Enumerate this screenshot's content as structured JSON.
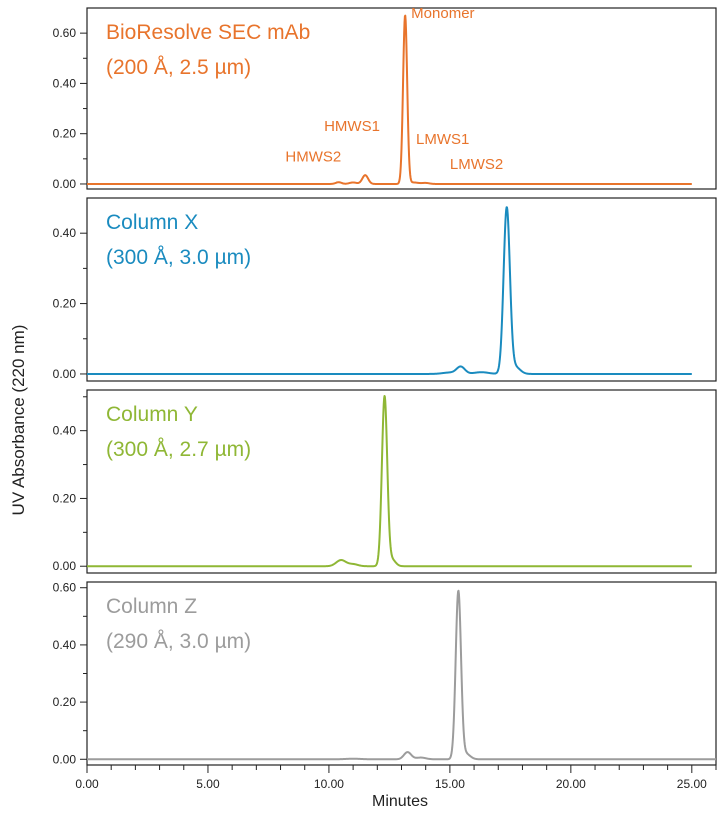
{
  "chart_data": {
    "type": "line",
    "ylabel": "UV Absorbance (220 nm)",
    "xlabel": "Minutes",
    "xlim": [
      0,
      26
    ],
    "x_ticks": [
      "0.00",
      "5.00",
      "10.00",
      "15.00",
      "20.00",
      "25.00"
    ],
    "x_tick_values": [
      0,
      5,
      10,
      15,
      20,
      25
    ],
    "x_minor_step": 1,
    "grid": false,
    "panels": [
      {
        "title_line1": "BioResolve SEC mAb",
        "title_line2": "(200 Å, 2.5 µm)",
        "color": "#e8742c",
        "ylim": [
          -0.02,
          0.7
        ],
        "y_ticks": [
          "0.00",
          "0.20",
          "0.40",
          "0.60"
        ],
        "y_tick_values": [
          0,
          0.2,
          0.4,
          0.6
        ],
        "baseline_x": [
          0,
          25
        ],
        "peaks": [
          {
            "center": 10.4,
            "height": 0.007,
            "width": 0.12
          },
          {
            "center": 11.0,
            "height": 0.006,
            "width": 0.15
          },
          {
            "center": 11.5,
            "height": 0.035,
            "width": 0.12
          },
          {
            "center": 13.15,
            "height": 0.67,
            "width": 0.085
          },
          {
            "center": 13.5,
            "height": 0.006,
            "width": 0.2
          },
          {
            "center": 14.0,
            "height": 0.004,
            "width": 0.15
          }
        ],
        "annotations": [
          {
            "label": "Monomer",
            "x": 13.4,
            "y": 0.66
          },
          {
            "label": "HMWS1",
            "x": 9.8,
            "y": 0.21
          },
          {
            "label": "HMWS2",
            "x": 8.2,
            "y": 0.09
          },
          {
            "label": "LMWS1",
            "x": 13.6,
            "y": 0.16
          },
          {
            "label": "LMWS2",
            "x": 15.0,
            "y": 0.06
          }
        ]
      },
      {
        "title_line1": "Column X",
        "title_line2": "(300 Å, 3.0 µm)",
        "color": "#1a8bbf",
        "ylim": [
          -0.02,
          0.5
        ],
        "y_ticks": [
          "0.00",
          "0.20",
          "0.40"
        ],
        "y_tick_values": [
          0,
          0.2,
          0.4
        ],
        "baseline_x": [
          0,
          25
        ],
        "peaks": [
          {
            "center": 15.0,
            "height": 0.004,
            "width": 0.3
          },
          {
            "center": 15.45,
            "height": 0.02,
            "width": 0.17
          },
          {
            "center": 16.3,
            "height": 0.005,
            "width": 0.3
          },
          {
            "center": 17.35,
            "height": 0.47,
            "width": 0.13
          },
          {
            "center": 17.7,
            "height": 0.02,
            "width": 0.2
          }
        ],
        "annotations": []
      },
      {
        "title_line1": "Column Y",
        "title_line2": "(300 Å, 2.7 µm)",
        "color": "#8fb735",
        "ylim": [
          -0.02,
          0.52
        ],
        "y_ticks": [
          "0.00",
          "0.20",
          "0.40"
        ],
        "y_tick_values": [
          0,
          0.2,
          0.4
        ],
        "baseline_x": [
          0,
          25
        ],
        "peaks": [
          {
            "center": 10.5,
            "height": 0.018,
            "width": 0.2
          },
          {
            "center": 11.0,
            "height": 0.006,
            "width": 0.2
          },
          {
            "center": 12.3,
            "height": 0.5,
            "width": 0.11
          },
          {
            "center": 12.6,
            "height": 0.02,
            "width": 0.15
          }
        ],
        "annotations": []
      },
      {
        "title_line1": "Column Z",
        "title_line2": "(290 Å, 3.0 µm)",
        "color": "#9c9c9c",
        "ylim": [
          -0.02,
          0.62
        ],
        "y_ticks": [
          "0.00",
          "0.20",
          "0.40",
          "0.60"
        ],
        "y_tick_values": [
          0,
          0.2,
          0.4,
          0.6
        ],
        "baseline_x": [
          0,
          26
        ],
        "peaks": [
          {
            "center": 11.0,
            "height": 0.002,
            "width": 0.3
          },
          {
            "center": 13.25,
            "height": 0.025,
            "width": 0.15
          },
          {
            "center": 13.8,
            "height": 0.006,
            "width": 0.2
          },
          {
            "center": 15.35,
            "height": 0.585,
            "width": 0.11
          },
          {
            "center": 15.65,
            "height": 0.02,
            "width": 0.18
          }
        ],
        "annotations": []
      }
    ]
  }
}
